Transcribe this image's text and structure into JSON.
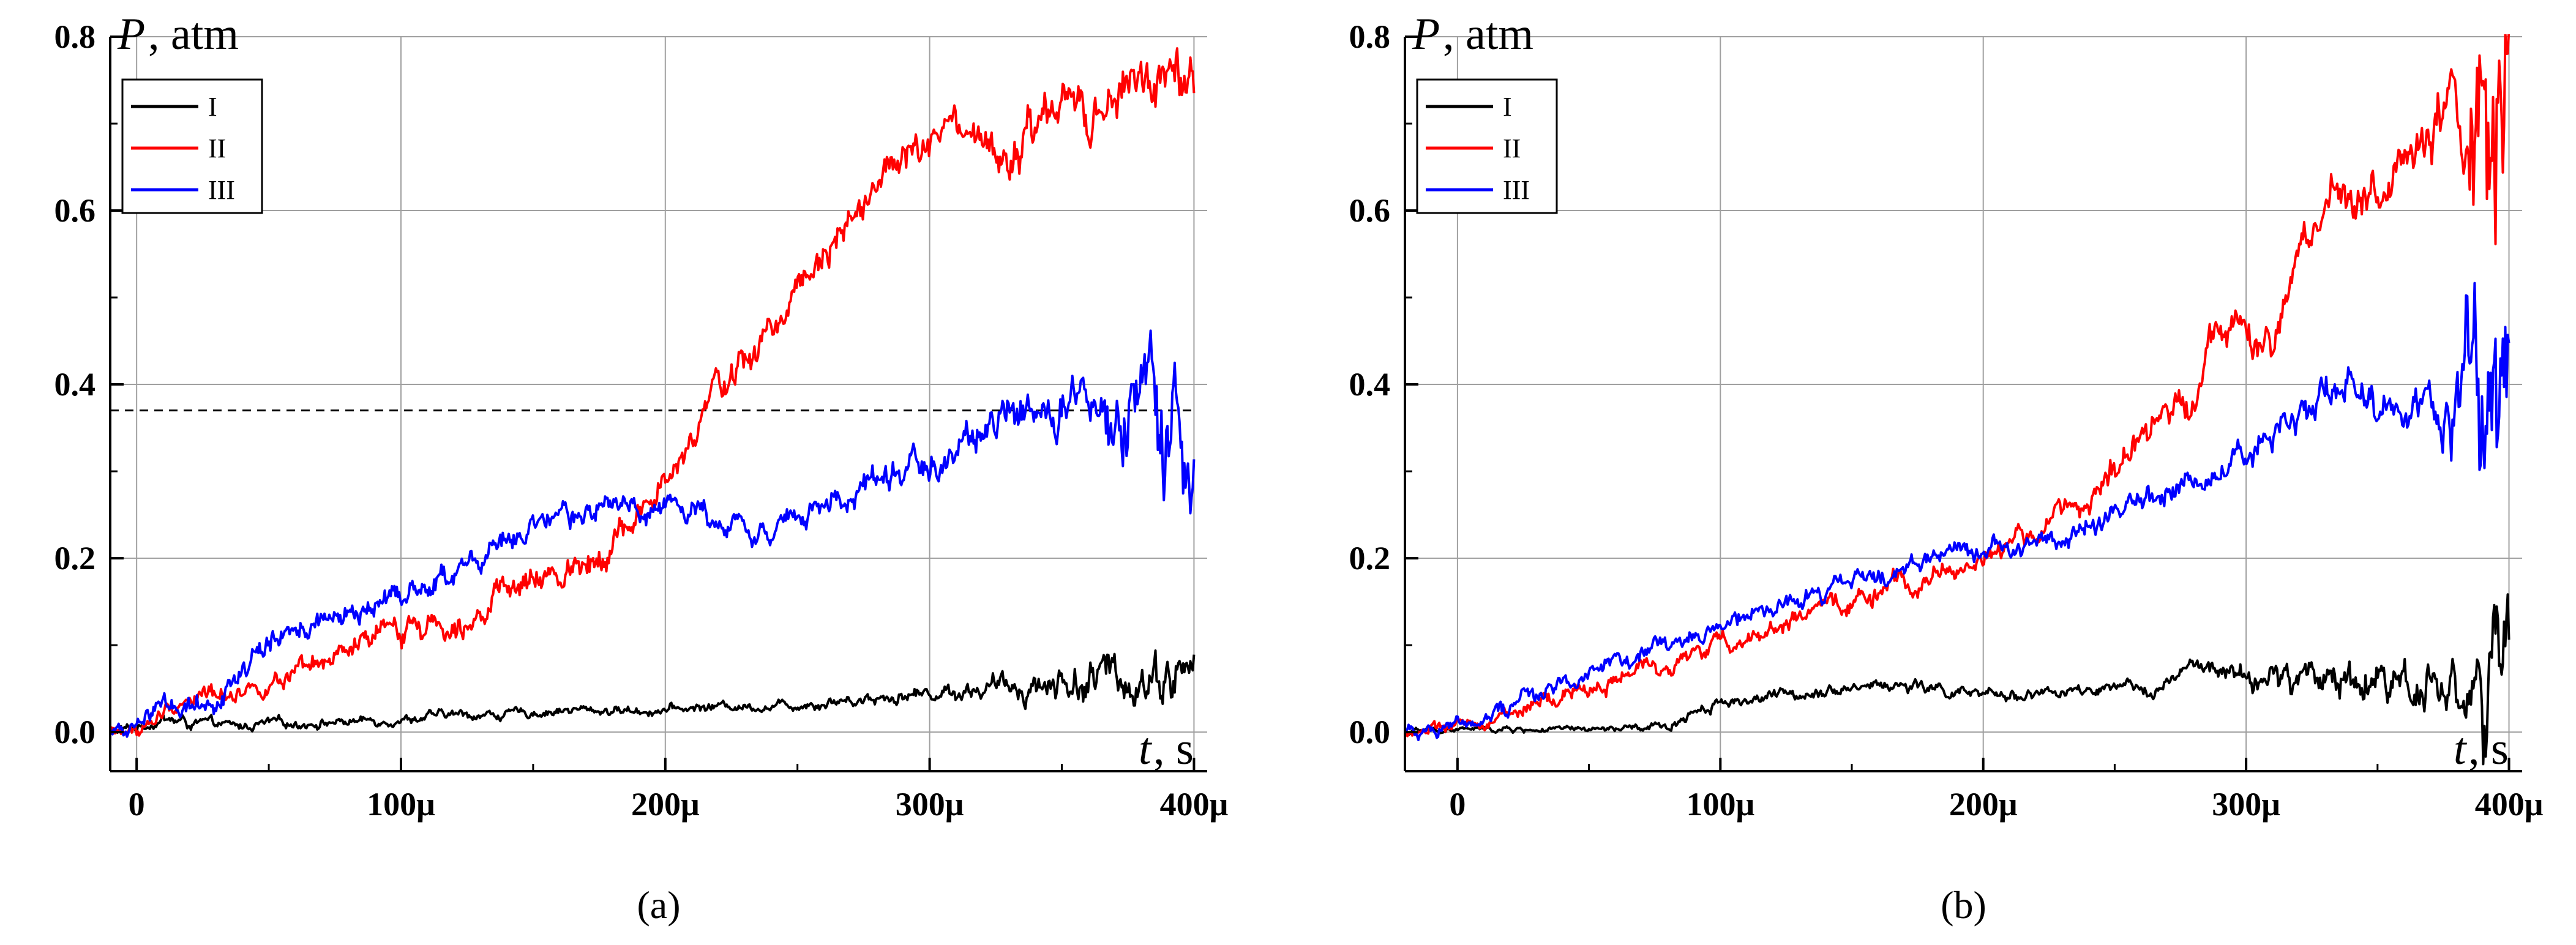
{
  "colors": {
    "I": "#000000",
    "II": "#ff0000",
    "III": "#0000ff",
    "grid": "#a0a0a0",
    "dashed": "#000000"
  },
  "chart_data": [
    {
      "type": "line",
      "panel_label": "(a)",
      "ylabel_symbol": "P",
      "ylabel_unit": ", atm",
      "xlabel_symbol": "t",
      "xlabel_unit": ", s",
      "xlim": [
        -1e-05,
        0.000405
      ],
      "ylim": [
        -0.045,
        0.8
      ],
      "xticks": [
        0,
        0.0001,
        0.0002,
        0.0003,
        0.0004
      ],
      "xtick_labels": [
        "0",
        "100μ",
        "200μ",
        "300μ",
        "400μ"
      ],
      "yticks": [
        0.0,
        0.2,
        0.4,
        0.6,
        0.8
      ],
      "ytick_labels": [
        "0.0",
        "0.2",
        "0.4",
        "0.6",
        "0.8"
      ],
      "grid": true,
      "legend_position": "top-left",
      "reference_line": {
        "y": 0.37,
        "x_from": -1e-05,
        "x_to": 0.0004,
        "style": "dashed"
      },
      "series": [
        {
          "name": "I",
          "x": [
            -1e-05,
            0,
            1e-05,
            2e-05,
            3e-05,
            4e-05,
            5e-05,
            6e-05,
            8e-05,
            0.0001,
            0.00012,
            0.00014,
            0.00016,
            0.00018,
            0.0002,
            0.00022,
            0.00024,
            0.00026,
            0.00028,
            0.0003,
            0.00032,
            0.00034,
            0.00036,
            0.00038,
            0.0004
          ],
          "y": [
            0,
            0.005,
            0.015,
            0.01,
            0.008,
            0.006,
            0.01,
            0.01,
            0.012,
            0.015,
            0.02,
            0.02,
            0.025,
            0.025,
            0.025,
            0.03,
            0.03,
            0.035,
            0.04,
            0.045,
            0.05,
            0.055,
            0.06,
            0.065,
            0.07
          ],
          "noise": [
            0.003,
            0.003,
            0.004,
            0.004,
            0.003,
            0.003,
            0.003,
            0.003,
            0.003,
            0.003,
            0.003,
            0.003,
            0.003,
            0.003,
            0.003,
            0.003,
            0.003,
            0.004,
            0.004,
            0.005,
            0.006,
            0.01,
            0.014,
            0.016,
            0.018
          ]
        },
        {
          "name": "II",
          "x": [
            -1e-05,
            0,
            1e-05,
            2e-05,
            3e-05,
            4e-05,
            5e-05,
            6e-05,
            8e-05,
            0.0001,
            0.00012,
            0.00014,
            0.00016,
            0.00018,
            0.0002,
            0.00021,
            0.00022,
            0.00023,
            0.00024,
            0.00025,
            0.00026,
            0.00027,
            0.00028,
            0.00029,
            0.0003,
            0.00031,
            0.00032,
            0.00033,
            0.00034,
            0.00035,
            0.00036,
            0.00037,
            0.00038,
            0.00039,
            0.0004
          ],
          "y": [
            0,
            0,
            0.02,
            0.04,
            0.045,
            0.05,
            0.055,
            0.06,
            0.09,
            0.12,
            0.13,
            0.16,
            0.18,
            0.22,
            0.28,
            0.33,
            0.4,
            0.42,
            0.46,
            0.52,
            0.56,
            0.6,
            0.63,
            0.66,
            0.67,
            0.69,
            0.67,
            0.65,
            0.69,
            0.72,
            0.7,
            0.72,
            0.76,
            0.74,
            0.72
          ],
          "noise": [
            0.004,
            0.004,
            0.006,
            0.006,
            0.006,
            0.006,
            0.006,
            0.007,
            0.008,
            0.009,
            0.009,
            0.009,
            0.009,
            0.01,
            0.01,
            0.01,
            0.01,
            0.012,
            0.012,
            0.012,
            0.012,
            0.012,
            0.012,
            0.013,
            0.013,
            0.013,
            0.013,
            0.014,
            0.015,
            0.015,
            0.016,
            0.016,
            0.017,
            0.018,
            0.02
          ]
        },
        {
          "name": "III",
          "x": [
            -1e-05,
            0,
            1e-05,
            2e-05,
            3e-05,
            4e-05,
            5e-05,
            6e-05,
            8e-05,
            0.0001,
            0.00012,
            0.00014,
            0.00016,
            0.00018,
            0.0002,
            0.00022,
            0.00024,
            0.00026,
            0.00028,
            0.0003,
            0.00031,
            0.00032,
            0.00034,
            0.00036,
            0.00038,
            0.00039,
            0.0004
          ],
          "y": [
            0,
            0.005,
            0.04,
            0.03,
            0.04,
            0.07,
            0.1,
            0.12,
            0.13,
            0.16,
            0.18,
            0.22,
            0.24,
            0.26,
            0.26,
            0.25,
            0.23,
            0.26,
            0.29,
            0.31,
            0.32,
            0.35,
            0.37,
            0.36,
            0.34,
            0.32,
            0.35
          ],
          "noise": [
            0.004,
            0.004,
            0.008,
            0.008,
            0.008,
            0.008,
            0.008,
            0.008,
            0.008,
            0.008,
            0.008,
            0.008,
            0.008,
            0.008,
            0.008,
            0.008,
            0.008,
            0.008,
            0.009,
            0.01,
            0.012,
            0.014,
            0.015,
            0.018,
            0.035,
            0.045,
            0.04
          ]
        }
      ]
    },
    {
      "type": "line",
      "panel_label": "(b)",
      "ylabel_symbol": "P",
      "ylabel_unit": ", atm",
      "xlabel_symbol": "t",
      "xlabel_unit": ", s",
      "xlim": [
        -2e-05,
        0.000405
      ],
      "ylim": [
        -0.045,
        0.8
      ],
      "xticks": [
        0,
        0.0001,
        0.0002,
        0.0003,
        0.0004
      ],
      "xtick_labels": [
        "0",
        "100μ",
        "200μ",
        "300μ",
        "400μ"
      ],
      "yticks": [
        0.0,
        0.2,
        0.4,
        0.6,
        0.8
      ],
      "ytick_labels": [
        "0.0",
        "0.2",
        "0.4",
        "0.6",
        "0.8"
      ],
      "grid": true,
      "legend_position": "top-left",
      "series": [
        {
          "name": "I",
          "x": [
            -2e-05,
            0,
            2e-05,
            4e-05,
            6e-05,
            8e-05,
            9e-05,
            0.0001,
            0.00012,
            0.00014,
            0.00016,
            0.00018,
            0.0002,
            0.00022,
            0.00024,
            0.00026,
            0.00027,
            0.00028,
            0.00029,
            0.0003,
            0.00032,
            0.00034,
            0.00036,
            0.00038,
            0.00039,
            0.0004
          ],
          "y": [
            0,
            0.003,
            0.003,
            0.002,
            0.003,
            0.005,
            0.025,
            0.035,
            0.04,
            0.05,
            0.055,
            0.05,
            0.04,
            0.045,
            0.045,
            0.05,
            0.055,
            0.075,
            0.07,
            0.06,
            0.06,
            0.065,
            0.06,
            0.055,
            0.04,
            0.05
          ],
          "noise": [
            0.002,
            0.002,
            0.002,
            0.002,
            0.002,
            0.003,
            0.004,
            0.004,
            0.004,
            0.004,
            0.004,
            0.004,
            0.004,
            0.004,
            0.004,
            0.004,
            0.005,
            0.006,
            0.006,
            0.008,
            0.012,
            0.015,
            0.015,
            0.018,
            0.04,
            0.05
          ]
        },
        {
          "name": "II",
          "x": [
            -2e-05,
            0,
            2e-05,
            4e-05,
            6e-05,
            8e-05,
            0.0001,
            0.00012,
            0.00014,
            0.00016,
            0.00018,
            0.0002,
            0.00022,
            0.00024,
            0.00026,
            0.00028,
            0.00029,
            0.0003,
            0.00031,
            0.00032,
            0.00033,
            0.00034,
            0.00035,
            0.00036,
            0.00037,
            0.00038,
            0.00039,
            0.0004
          ],
          "y": [
            0,
            0.005,
            0.02,
            0.04,
            0.06,
            0.08,
            0.1,
            0.12,
            0.14,
            0.16,
            0.18,
            0.2,
            0.23,
            0.27,
            0.33,
            0.4,
            0.48,
            0.45,
            0.43,
            0.55,
            0.6,
            0.62,
            0.62,
            0.65,
            0.68,
            0.7,
            0.68,
            0.62
          ],
          "noise": [
            0.004,
            0.004,
            0.005,
            0.006,
            0.006,
            0.006,
            0.006,
            0.006,
            0.006,
            0.007,
            0.007,
            0.007,
            0.008,
            0.009,
            0.01,
            0.012,
            0.012,
            0.012,
            0.012,
            0.014,
            0.015,
            0.015,
            0.016,
            0.016,
            0.018,
            0.03,
            0.08,
            0.09
          ]
        },
        {
          "name": "III",
          "x": [
            -2e-05,
            0,
            2e-05,
            4e-05,
            6e-05,
            8e-05,
            0.0001,
            0.00012,
            0.00014,
            0.00016,
            0.00018,
            0.0002,
            0.00022,
            0.00024,
            0.00026,
            0.00028,
            0.0003,
            0.00032,
            0.00033,
            0.00034,
            0.00035,
            0.00036,
            0.00037,
            0.00038,
            0.00039,
            0.0004
          ],
          "y": [
            0,
            0.01,
            0.03,
            0.06,
            0.08,
            0.1,
            0.12,
            0.14,
            0.16,
            0.18,
            0.2,
            0.215,
            0.22,
            0.23,
            0.26,
            0.3,
            0.32,
            0.35,
            0.4,
            0.4,
            0.38,
            0.37,
            0.37,
            0.36,
            0.4,
            0.4
          ],
          "noise": [
            0.004,
            0.005,
            0.006,
            0.006,
            0.006,
            0.006,
            0.006,
            0.006,
            0.006,
            0.007,
            0.007,
            0.007,
            0.007,
            0.008,
            0.008,
            0.009,
            0.01,
            0.012,
            0.012,
            0.012,
            0.012,
            0.012,
            0.015,
            0.03,
            0.07,
            0.08
          ]
        }
      ]
    }
  ]
}
